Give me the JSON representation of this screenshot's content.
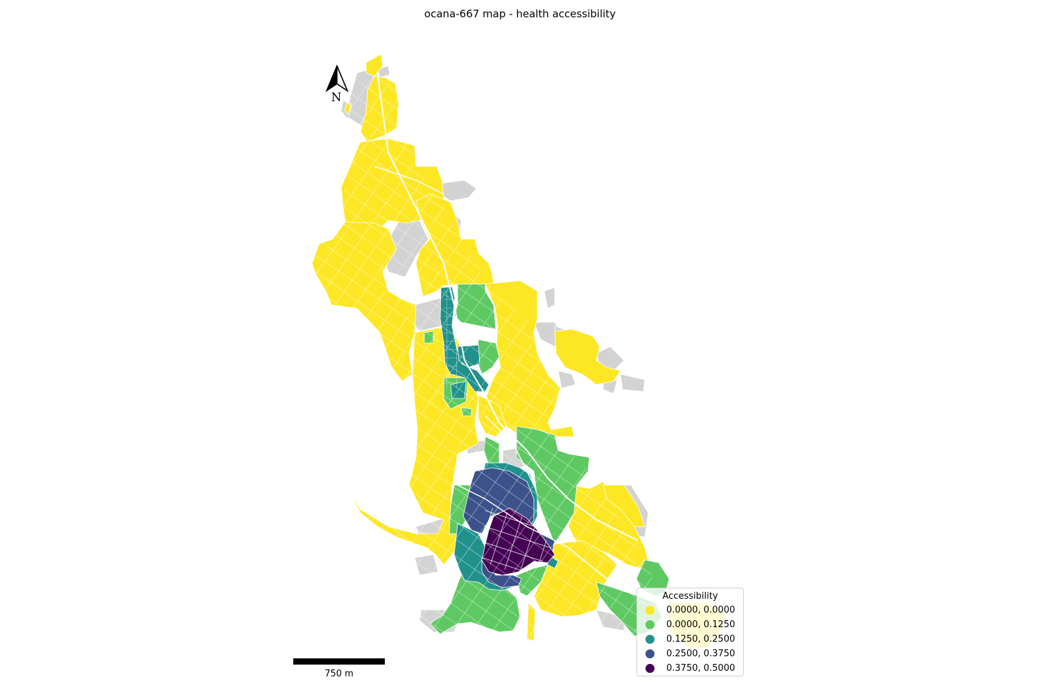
{
  "title": "ocana-667 map - health accessibility",
  "north_arrow": {
    "label": "N"
  },
  "scale_bar": {
    "label": "750 m"
  },
  "legend": {
    "title": "Accessibility",
    "items": [
      {
        "label": "0.0000, 0.0000",
        "color": "#fde725"
      },
      {
        "label": "0.0000, 0.1250",
        "color": "#5ec962"
      },
      {
        "label": "0.1250, 0.2500",
        "color": "#21918c"
      },
      {
        "label": "0.2500, 0.3750",
        "color": "#3b528b"
      },
      {
        "label": "0.3750, 0.5000",
        "color": "#440154"
      }
    ]
  },
  "colors": {
    "no_data": "#d3d3d3",
    "block_lines": "#ffffff"
  }
}
